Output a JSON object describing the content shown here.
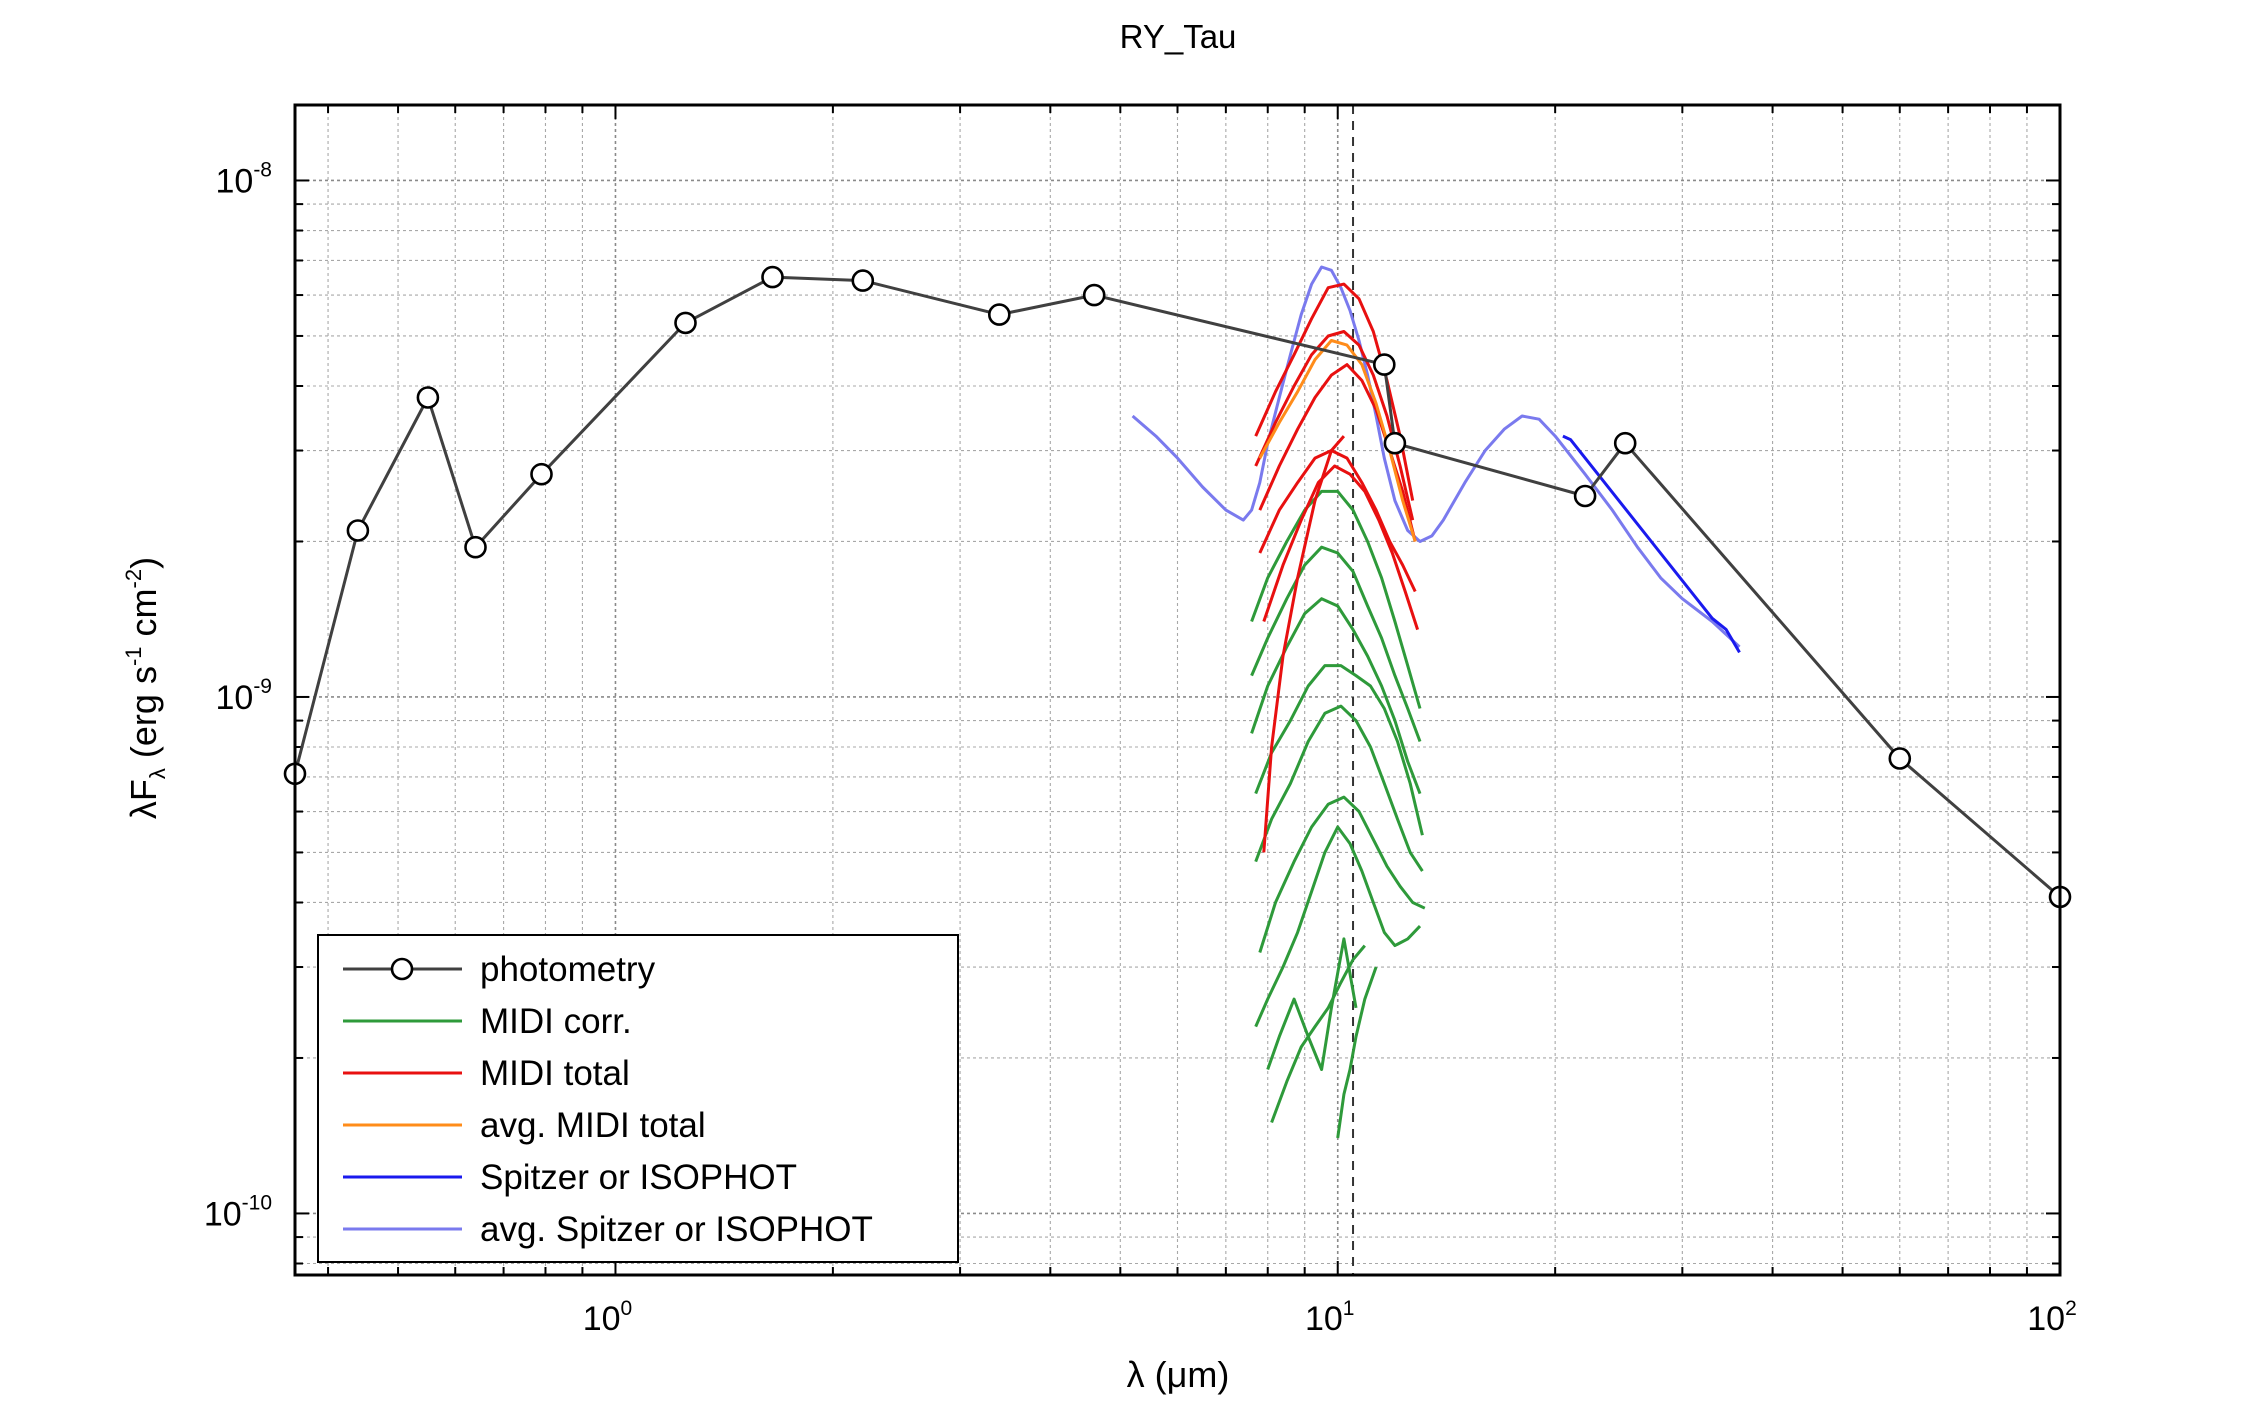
{
  "chart_data": {
    "type": "line",
    "title": "RY_Tau",
    "xlabel": {
      "main": "λ (μm)"
    },
    "ylabel": {
      "lead": "λF",
      "sub": "λ",
      "units_open": " (erg s",
      "exp1": "-1",
      "units_mid": " cm",
      "exp2": "-2",
      "units_close": ")"
    },
    "x_scale": "log",
    "y_scale": "log",
    "xlim": [
      0.36,
      100
    ],
    "ylim": [
      7.6e-11,
      1.4e-08
    ],
    "x_ticks": [
      {
        "value": 1,
        "base": "10",
        "exp": "0"
      },
      {
        "value": 10,
        "base": "10",
        "exp": "1"
      },
      {
        "value": 100,
        "base": "10",
        "exp": "2"
      }
    ],
    "y_ticks": [
      {
        "value": 1e-08,
        "base": "10",
        "exp": "-8"
      },
      {
        "value": 1e-09,
        "base": "10",
        "exp": "-9"
      },
      {
        "value": 1e-10,
        "base": "10",
        "exp": "-10"
      }
    ],
    "grid": true,
    "legend_position": "bottom-left",
    "vline": {
      "x": 10.5,
      "style": "dashed"
    },
    "colors": {
      "photometry": "#404040",
      "midi_corr": "#2e9a3a",
      "midi_total": "#e81010",
      "avg_midi_total": "#ff8c1a",
      "spitzer": "#1a1aee",
      "avg_spitzer": "#7a7aee"
    },
    "legend": [
      {
        "key": "photometry",
        "label": "photometry",
        "marker": true
      },
      {
        "key": "midi_corr",
        "label": "MIDI corr."
      },
      {
        "key": "midi_total",
        "label": "MIDI total"
      },
      {
        "key": "avg_midi_total",
        "label": "avg. MIDI total"
      },
      {
        "key": "spitzer",
        "label": "Spitzer or ISOPHOT"
      },
      {
        "key": "avg_spitzer",
        "label": "avg. Spitzer or ISOPHOT"
      }
    ],
    "series": [
      {
        "key": "photometry",
        "name": "photometry",
        "marker": "circle",
        "x": [
          0.36,
          0.44,
          0.55,
          0.64,
          0.79,
          1.25,
          1.65,
          2.2,
          3.4,
          4.6,
          11.6,
          12.0,
          22.0,
          25.0,
          60.0,
          100.0
        ],
        "y": [
          7.1e-10,
          2.1e-09,
          3.8e-09,
          1.95e-09,
          2.7e-09,
          5.3e-09,
          6.5e-09,
          6.4e-09,
          5.5e-09,
          6e-09,
          4.4e-09,
          3.1e-09,
          2.45e-09,
          3.1e-09,
          7.6e-10,
          4.1e-10
        ]
      },
      {
        "key": "avg_spitzer",
        "name": "avg. Spitzer or ISOPHOT",
        "x": [
          5.2,
          5.6,
          6.0,
          6.5,
          7.0,
          7.4,
          7.6,
          7.8,
          8.0,
          8.3,
          8.6,
          8.9,
          9.2,
          9.5,
          9.8,
          10.1,
          10.4,
          10.7,
          11.0,
          11.3,
          11.6,
          12.0,
          12.5,
          13.0,
          13.5,
          14.0,
          15.0,
          16.0,
          17.0,
          18.0,
          19.0,
          20.0,
          22.0,
          24.0,
          26.0,
          28.0,
          30.0,
          33.0,
          36.0
        ],
        "y": [
          3.5e-09,
          3.2e-09,
          2.9e-09,
          2.55e-09,
          2.3e-09,
          2.2e-09,
          2.3e-09,
          2.6e-09,
          3.1e-09,
          3.8e-09,
          4.6e-09,
          5.5e-09,
          6.3e-09,
          6.8e-09,
          6.7e-09,
          6.2e-09,
          5.6e-09,
          4.9e-09,
          4.2e-09,
          3.5e-09,
          2.9e-09,
          2.4e-09,
          2.1e-09,
          2e-09,
          2.05e-09,
          2.2e-09,
          2.6e-09,
          3e-09,
          3.3e-09,
          3.5e-09,
          3.45e-09,
          3.2e-09,
          2.7e-09,
          2.3e-09,
          1.95e-09,
          1.7e-09,
          1.55e-09,
          1.4e-09,
          1.25e-09
        ]
      },
      {
        "key": "spitzer",
        "name": "Spitzer or ISOPHOT",
        "x": [
          20.5,
          21.0,
          33.0,
          34.5,
          36.0
        ],
        "y": [
          3.2e-09,
          3.15e-09,
          1.42e-09,
          1.35e-09,
          1.22e-09
        ]
      },
      {
        "key": "midi_total",
        "name": "MIDI total",
        "lines": [
          {
            "x": [
              7.7,
              8.2,
              8.7,
              9.2,
              9.7,
              10.2,
              10.7,
              11.2,
              11.7,
              12.2,
              12.7
            ],
            "y": [
              3.2e-09,
              3.9e-09,
              4.6e-09,
              5.4e-09,
              6.2e-09,
              6.3e-09,
              5.9e-09,
              5.1e-09,
              4.1e-09,
              3.2e-09,
              2.4e-09
            ]
          },
          {
            "x": [
              7.7,
              8.2,
              8.7,
              9.2,
              9.7,
              10.2,
              10.7,
              11.2,
              11.7,
              12.2,
              12.7
            ],
            "y": [
              2.8e-09,
              3.4e-09,
              4e-09,
              4.6e-09,
              5e-09,
              5.1e-09,
              4.8e-09,
              4.2e-09,
              3.5e-09,
              2.8e-09,
              2.2e-09
            ]
          },
          {
            "x": [
              7.8,
              8.3,
              8.8,
              9.3,
              9.8,
              10.3,
              10.8,
              11.3,
              11.8,
              12.3,
              12.8
            ],
            "y": [
              2.3e-09,
              2.8e-09,
              3.3e-09,
              3.8e-09,
              4.2e-09,
              4.4e-09,
              4.1e-09,
              3.6e-09,
              3e-09,
              2.5e-09,
              2e-09
            ]
          },
          {
            "x": [
              7.8,
              8.3,
              8.8,
              9.3,
              9.8,
              10.3,
              10.8,
              11.3,
              11.8,
              12.3,
              12.8
            ],
            "y": [
              1.9e-09,
              2.3e-09,
              2.6e-09,
              2.9e-09,
              3e-09,
              2.9e-09,
              2.6e-09,
              2.3e-09,
              2e-09,
              1.8e-09,
              1.6e-09
            ]
          },
          {
            "x": [
              7.9,
              8.4,
              8.9,
              9.4,
              9.9,
              10.4,
              10.9,
              11.4,
              11.9,
              12.4,
              12.9
            ],
            "y": [
              1.4e-09,
              1.8e-09,
              2.2e-09,
              2.6e-09,
              2.8e-09,
              2.7e-09,
              2.5e-09,
              2.2e-09,
              1.9e-09,
              1.6e-09,
              1.35e-09
            ]
          },
          {
            "x": [
              7.9,
              8.1,
              8.4,
              8.8,
              9.3,
              9.8,
              10.2
            ],
            "y": [
              5e-10,
              8e-10,
              1.2e-09,
              1.7e-09,
              2.4e-09,
              3e-09,
              3.2e-09
            ]
          }
        ]
      },
      {
        "key": "avg_midi_total",
        "name": "avg. MIDI total",
        "x": [
          7.8,
          8.3,
          8.8,
          9.3,
          9.8,
          10.3,
          10.8,
          11.3,
          11.8,
          12.3,
          12.8
        ],
        "y": [
          2.9e-09,
          3.4e-09,
          3.9e-09,
          4.5e-09,
          4.9e-09,
          4.8e-09,
          4.4e-09,
          3.7e-09,
          3e-09,
          2.4e-09,
          2e-09
        ]
      },
      {
        "key": "midi_corr",
        "name": "MIDI corr.",
        "lines": [
          {
            "x": [
              7.6,
              8.0,
              8.5,
              9.0,
              9.5,
              10.0,
              10.5,
              11.0,
              11.5,
              12.0,
              12.5,
              13.0
            ],
            "y": [
              1.4e-09,
              1.7e-09,
              2e-09,
              2.3e-09,
              2.5e-09,
              2.5e-09,
              2.3e-09,
              2e-09,
              1.7e-09,
              1.4e-09,
              1.15e-09,
              9.5e-10
            ]
          },
          {
            "x": [
              7.6,
              8.0,
              8.5,
              9.0,
              9.5,
              10.0,
              10.5,
              11.0,
              11.5,
              12.0,
              12.5,
              13.0
            ],
            "y": [
              1.1e-09,
              1.3e-09,
              1.55e-09,
              1.8e-09,
              1.95e-09,
              1.9e-09,
              1.75e-09,
              1.5e-09,
              1.3e-09,
              1.1e-09,
              9.5e-10,
              8.2e-10
            ]
          },
          {
            "x": [
              7.6,
              8.0,
              8.5,
              9.0,
              9.5,
              10.0,
              10.5,
              11.0,
              11.5,
              12.0,
              12.5,
              13.0
            ],
            "y": [
              8.5e-10,
              1.05e-09,
              1.25e-09,
              1.45e-09,
              1.55e-09,
              1.5e-09,
              1.35e-09,
              1.2e-09,
              1.05e-09,
              9e-10,
              7.5e-10,
              6.5e-10
            ]
          },
          {
            "x": [
              7.7,
              8.1,
              8.6,
              9.1,
              9.6,
              10.1,
              10.6,
              11.1,
              11.6,
              12.1,
              12.6,
              13.1
            ],
            "y": [
              6.5e-10,
              7.8e-10,
              9e-10,
              1.05e-09,
              1.15e-09,
              1.15e-09,
              1.1e-09,
              1.05e-09,
              9.5e-10,
              8.2e-10,
              6.8e-10,
              5.4e-10
            ]
          },
          {
            "x": [
              7.7,
              8.1,
              8.6,
              9.1,
              9.6,
              10.1,
              10.6,
              11.1,
              11.6,
              12.1,
              12.6,
              13.1
            ],
            "y": [
              4.8e-10,
              5.8e-10,
              6.8e-10,
              8.2e-10,
              9.3e-10,
              9.6e-10,
              9e-10,
              8e-10,
              6.8e-10,
              5.8e-10,
              5e-10,
              4.6e-10
            ]
          },
          {
            "x": [
              7.8,
              8.2,
              8.7,
              9.2,
              9.7,
              10.2,
              10.7,
              11.2,
              11.7,
              12.2,
              12.7,
              13.2
            ],
            "y": [
              3.2e-10,
              4e-10,
              4.8e-10,
              5.6e-10,
              6.2e-10,
              6.4e-10,
              6e-10,
              5.3e-10,
              4.7e-10,
              4.3e-10,
              4e-10,
              3.9e-10
            ]
          },
          {
            "x": [
              7.7,
              8.0,
              8.4,
              8.8,
              9.2,
              9.6,
              10.0,
              10.4,
              10.8,
              11.2,
              11.6,
              12.0,
              12.5,
              13.0
            ],
            "y": [
              2.3e-10,
              2.6e-10,
              3e-10,
              3.5e-10,
              4.2e-10,
              5e-10,
              5.6e-10,
              5.2e-10,
              4.6e-10,
              4e-10,
              3.5e-10,
              3.3e-10,
              3.4e-10,
              3.6e-10
            ]
          },
          {
            "x": [
              8.1,
              8.5,
              8.9,
              9.3,
              9.7,
              10.1,
              10.5,
              10.9
            ],
            "y": [
              1.5e-10,
              1.8e-10,
              2.1e-10,
              2.3e-10,
              2.5e-10,
              2.8e-10,
              3.1e-10,
              3.3e-10
            ]
          },
          {
            "x": [
              8.0,
              8.3,
              8.7,
              9.1,
              9.5,
              9.8,
              10.2,
              10.6
            ],
            "y": [
              1.9e-10,
              2.2e-10,
              2.6e-10,
              2.2e-10,
              1.9e-10,
              2.5e-10,
              3.4e-10,
              2.5e-10
            ]
          },
          {
            "x": [
              10.0,
              10.2,
              10.4,
              10.6,
              10.9,
              11.3
            ],
            "y": [
              1.4e-10,
              1.7e-10,
              1.9e-10,
              2.2e-10,
              2.6e-10,
              3e-10
            ]
          }
        ]
      }
    ]
  }
}
